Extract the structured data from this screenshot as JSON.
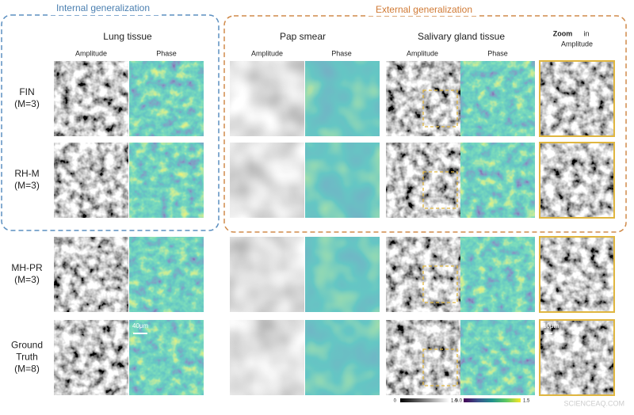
{
  "groups": {
    "internal": "Internal generalization",
    "external": "External generalization"
  },
  "datasets": {
    "lung": "Lung tissue",
    "pap": "Pap smear",
    "salivary": "Salivary gland tissue"
  },
  "columns": {
    "lung_amp": "Amplitude",
    "lung_phase": "Phase",
    "pap_amp": "Amplitude",
    "pap_phase": "Phase",
    "sal_amp": "Amplitude",
    "sal_phase": "Phase",
    "zoom_bold": "Zoom",
    "zoom_rest": "in",
    "zoom_sub": "Amplitude"
  },
  "rows": [
    {
      "lines": [
        "FIN",
        "(M=3)"
      ]
    },
    {
      "lines": [
        "RH-M",
        "(M=3)"
      ]
    },
    {
      "lines": [
        "MH-PR",
        "(M=3)"
      ]
    },
    {
      "lines": [
        "Ground",
        "Truth",
        "(M=8)"
      ]
    }
  ],
  "scale_bars": {
    "lung": "40μm",
    "zoom": "10μm"
  },
  "colorbars": {
    "amplitude": [
      "0",
      "1.5"
    ],
    "phase": [
      "-0.0",
      "1.5"
    ]
  },
  "watermark": "SCIENCEAQ.COM"
}
